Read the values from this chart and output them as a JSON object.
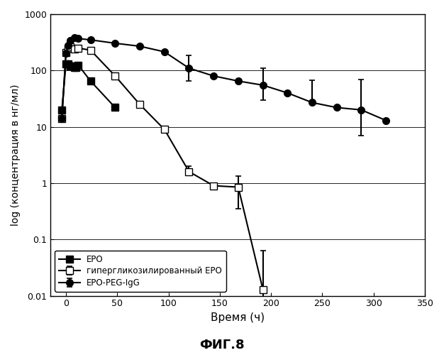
{
  "title": "ФИГ.8",
  "xlabel": "Время (ч)",
  "ylabel": "log (концентрация в нг/мл)",
  "xlim": [
    -15,
    350
  ],
  "ylim_log": [
    0.01,
    1000
  ],
  "xticks": [
    0,
    50,
    100,
    150,
    200,
    250,
    300,
    350
  ],
  "yticks": [
    0.01,
    0.1,
    1,
    10,
    100,
    1000
  ],
  "ytick_labels": [
    "0.01",
    "0.1",
    "1",
    "10",
    "100",
    "1000"
  ],
  "epo_x": [
    -4,
    0,
    2,
    4,
    6,
    8,
    10,
    12,
    24,
    48
  ],
  "epo_y": [
    20,
    130,
    130,
    120,
    120,
    115,
    115,
    125,
    65,
    22
  ],
  "hyper_x": [
    -4,
    0,
    2,
    4,
    8,
    12,
    24,
    48,
    72,
    96,
    120,
    144,
    168,
    192
  ],
  "hyper_y": [
    14,
    210,
    250,
    260,
    240,
    250,
    230,
    80,
    25,
    9,
    1.6,
    0.9,
    0.85,
    0.013
  ],
  "hyper_yerr_lo": [
    0,
    0,
    0,
    0,
    0,
    0,
    0,
    0,
    0,
    0,
    0,
    0,
    0.5,
    0.008
  ],
  "hyper_yerr_hi": [
    0,
    0,
    0,
    0,
    0,
    0,
    0,
    0,
    0,
    0,
    0.4,
    0,
    0.5,
    0.05
  ],
  "peg_x": [
    -4,
    0,
    2,
    4,
    8,
    12,
    24,
    48,
    72,
    96,
    120,
    144,
    168,
    192,
    216,
    240,
    264,
    288,
    312
  ],
  "peg_y": [
    14,
    200,
    280,
    340,
    380,
    370,
    350,
    305,
    270,
    215,
    110,
    80,
    65,
    55,
    40,
    27,
    22,
    20,
    13
  ],
  "peg_yerr_lo": [
    0,
    0,
    0,
    0,
    0,
    0,
    0,
    0,
    0,
    0,
    45,
    0,
    0,
    25,
    0,
    0,
    0,
    13,
    0
  ],
  "peg_yerr_hi": [
    0,
    0,
    0,
    0,
    0,
    0,
    0,
    0,
    0,
    0,
    75,
    0,
    0,
    55,
    0,
    40,
    0,
    50,
    0
  ],
  "legend_labels": [
    "ЕРО",
    "гипергликозилированный ЕРО",
    "ЕРО-PEG-IgG"
  ],
  "bg_color": "#ffffff",
  "line_color": "#000000"
}
